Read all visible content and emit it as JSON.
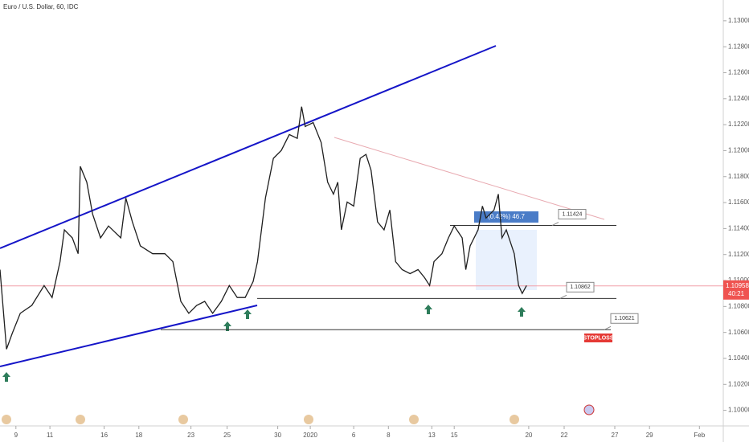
{
  "chart_data": {
    "type": "line",
    "title": "Euro / U.S. Dollar, 60, IDC",
    "color": "#1f1f1f",
    "ylim": [
      1.0988,
      1.1316
    ],
    "yticks": [
      {
        "value": 1.1,
        "label": "1.10000"
      },
      {
        "value": 1.102,
        "label": "1.10200"
      },
      {
        "value": 1.104,
        "label": "1.10400"
      },
      {
        "value": 1.106,
        "label": "1.10600"
      },
      {
        "value": 1.108,
        "label": "1.10800"
      },
      {
        "value": 1.11,
        "label": "1.11000"
      },
      {
        "value": 1.112,
        "label": "1.11200"
      },
      {
        "value": 1.114,
        "label": "1.11400"
      },
      {
        "value": 1.116,
        "label": "1.11600"
      },
      {
        "value": 1.118,
        "label": "1.11800"
      },
      {
        "value": 1.12,
        "label": "1.12000"
      },
      {
        "value": 1.122,
        "label": "1.12200"
      },
      {
        "value": 1.124,
        "label": "1.12400"
      },
      {
        "value": 1.126,
        "label": "1.12600"
      },
      {
        "value": 1.128,
        "label": "1.12800"
      },
      {
        "value": 1.13,
        "label": "1.13000"
      }
    ],
    "xlim": [
      0,
      1000
    ],
    "xticks": [
      {
        "value": 22,
        "label": "9"
      },
      {
        "value": 69,
        "label": "11"
      },
      {
        "value": 144,
        "label": "16"
      },
      {
        "value": 192,
        "label": "18"
      },
      {
        "value": 264,
        "label": "23"
      },
      {
        "value": 314,
        "label": "25"
      },
      {
        "value": 384,
        "label": "30"
      },
      {
        "value": 429,
        "label": "2020"
      },
      {
        "value": 489,
        "label": "6"
      },
      {
        "value": 537,
        "label": "8"
      },
      {
        "value": 597,
        "label": "13"
      },
      {
        "value": 628,
        "label": "15"
      },
      {
        "value": 731,
        "label": "20"
      },
      {
        "value": 780,
        "label": "22"
      },
      {
        "value": 850,
        "label": "27"
      },
      {
        "value": 898,
        "label": "29"
      },
      {
        "value": 967,
        "label": "Feb"
      }
    ],
    "x": [
      0,
      9,
      17,
      28,
      44,
      61,
      72,
      83,
      89,
      100,
      108,
      111,
      120,
      128,
      139,
      150,
      167,
      174,
      183,
      194,
      211,
      228,
      239,
      250,
      261,
      272,
      283,
      294,
      306,
      317,
      328,
      339,
      350,
      356,
      367,
      378,
      389,
      400,
      411,
      417,
      422,
      433,
      444,
      453,
      461,
      467,
      472,
      480,
      489,
      498,
      506,
      513,
      522,
      531,
      539,
      547,
      556,
      567,
      578,
      587,
      594,
      600,
      611,
      620,
      628,
      639,
      644,
      650,
      661,
      667,
      672,
      683,
      689,
      694,
      700,
      711,
      717,
      722,
      728
    ],
    "values": [
      1.11084,
      1.10471,
      1.10594,
      1.10747,
      1.10808,
      1.10961,
      1.10869,
      1.11145,
      1.1139,
      1.11328,
      1.11206,
      1.11879,
      1.11757,
      1.11512,
      1.11328,
      1.1142,
      1.11328,
      1.11635,
      1.11451,
      1.11267,
      1.11206,
      1.11206,
      1.11145,
      1.10839,
      1.10747,
      1.10808,
      1.10839,
      1.10747,
      1.10839,
      1.10961,
      1.10869,
      1.10869,
      1.10992,
      1.11145,
      1.11635,
      1.11941,
      1.12002,
      1.12124,
      1.12094,
      1.12339,
      1.12186,
      1.12216,
      1.12063,
      1.11757,
      1.11665,
      1.11757,
      1.1139,
      1.11604,
      1.11573,
      1.11941,
      1.11971,
      1.11849,
      1.11451,
      1.1139,
      1.11543,
      1.11145,
      1.11084,
      1.11053,
      1.11084,
      1.11022,
      1.10961,
      1.11145,
      1.11206,
      1.11328,
      1.1142,
      1.11328,
      1.11084,
      1.11267,
      1.1139,
      1.11573,
      1.11481,
      1.11543,
      1.11665,
      1.11328,
      1.1139,
      1.11206,
      1.10961,
      1.109,
      1.10961
    ],
    "levels": [
      1.11424,
      1.10862,
      1.10621
    ],
    "current_price": 1.10958,
    "countdown": "40:21",
    "stoploss_label": "STOPLOSS",
    "measure_label": "(0.42%) 46.7"
  }
}
